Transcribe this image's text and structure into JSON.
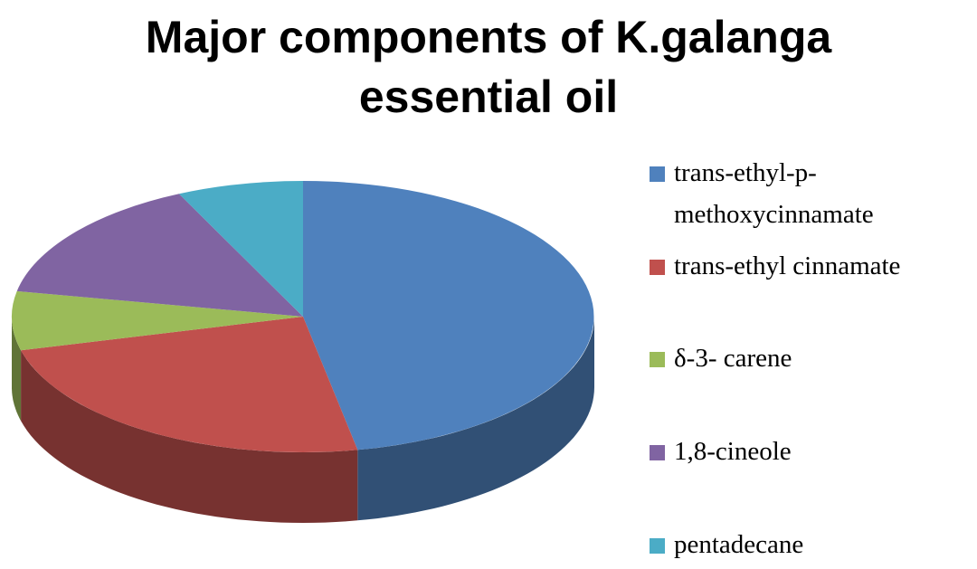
{
  "chart_data": {
    "type": "pie3d",
    "title": "Major components of K.galanga essential oil",
    "categories": [
      "trans-ethyl-p-methoxycinnamate",
      "trans-ethyl cinnamate",
      "δ-3- carene",
      "1,8-cineole",
      "pentadecane"
    ],
    "values": [
      47,
      24,
      7,
      15,
      7
    ],
    "colors": [
      "#4f81bd",
      "#c0504d",
      "#9bbb59",
      "#8064a2",
      "#4bacc6"
    ],
    "legend": "right"
  }
}
